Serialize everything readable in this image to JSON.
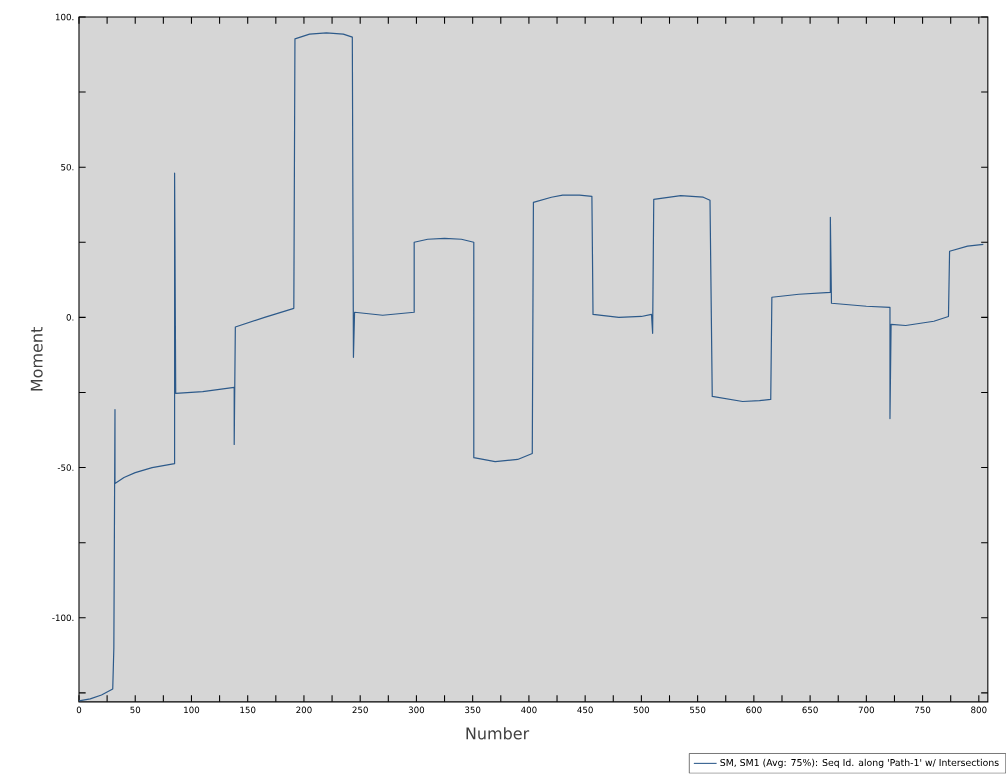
{
  "chart_data": {
    "type": "line",
    "xlabel": "Number",
    "ylabel": "Moment",
    "legend": "bottom right",
    "xlim": [
      0,
      808
    ],
    "ylim": [
      -128,
      100
    ],
    "xticks": [
      0,
      {
        "value": 25,
        "label": null
      },
      50,
      {
        "value": 75,
        "label": null
      },
      100,
      {
        "value": 125,
        "label": null
      },
      150,
      {
        "value": 175,
        "label": null
      },
      200,
      {
        "value": 225,
        "label": null
      },
      250,
      {
        "value": 275,
        "label": null
      },
      300,
      {
        "value": 325,
        "label": null
      },
      350,
      {
        "value": 375,
        "label": null
      },
      400,
      {
        "value": 425,
        "label": null
      },
      450,
      {
        "value": 475,
        "label": null
      },
      500,
      {
        "value": 525,
        "label": null
      },
      550,
      {
        "value": 575,
        "label": null
      },
      600,
      {
        "value": 625,
        "label": null
      },
      650,
      {
        "value": 675,
        "label": null
      },
      700,
      {
        "value": 725,
        "label": null
      },
      750,
      {
        "value": 775,
        "label": null
      },
      800
    ],
    "yticks": [
      {
        "value": -125,
        "label": null
      },
      {
        "value": -100,
        "label": "-100."
      },
      {
        "value": -75,
        "label": null
      },
      {
        "value": -50,
        "label": "-50."
      },
      {
        "value": -25,
        "label": null
      },
      {
        "value": 0,
        "label": "0."
      },
      {
        "value": 25,
        "label": null
      },
      {
        "value": 50,
        "label": "50."
      },
      {
        "value": 75,
        "label": null
      },
      {
        "value": 100,
        "label": "100."
      }
    ],
    "series": [
      {
        "name": "SM, SM1 (Avg: 75%): Seq Id. along 'Path-1' w/ Intersections",
        "color": "#2d5a8a",
        "x": [
          0,
          10,
          20,
          30,
          31,
          32,
          32,
          40,
          50,
          65,
          85,
          85,
          86,
          110,
          138,
          138,
          139,
          165,
          191,
          192,
          205,
          220,
          235,
          243,
          244,
          245,
          270,
          298,
          298,
          310,
          325,
          340,
          351,
          351,
          370,
          390,
          403,
          404,
          420,
          430,
          445,
          456,
          457,
          480,
          500,
          509,
          510,
          511,
          535,
          555,
          561,
          563,
          590,
          605,
          615,
          616,
          640,
          668,
          668,
          669,
          700,
          721,
          721,
          722,
          735,
          760,
          773,
          774,
          790,
          804
        ],
        "values": [
          -127.7,
          -127,
          -125.7,
          -123.7,
          -110,
          -30.7,
          -55.3,
          -53.3,
          -51.7,
          -50,
          -48.7,
          48,
          -25.3,
          -24.7,
          -23.3,
          -42.3,
          -3.2,
          0,
          3,
          92.7,
          94.3,
          94.7,
          94.3,
          93.3,
          -13.3,
          1.7,
          0.7,
          1.7,
          25,
          26,
          26.3,
          26,
          25,
          -46.7,
          -48,
          -47.3,
          -45.3,
          38.3,
          40,
          40.7,
          40.7,
          40.3,
          1,
          0,
          0.3,
          1,
          -5.3,
          39.3,
          40.5,
          40,
          39,
          -26.3,
          -28,
          -27.7,
          -27.3,
          6.7,
          7.7,
          8.3,
          33.3,
          4.7,
          3.7,
          3.3,
          -33.7,
          -2.3,
          -2.7,
          -1.3,
          0.3,
          22,
          23.7,
          24.3
        ]
      }
    ]
  }
}
